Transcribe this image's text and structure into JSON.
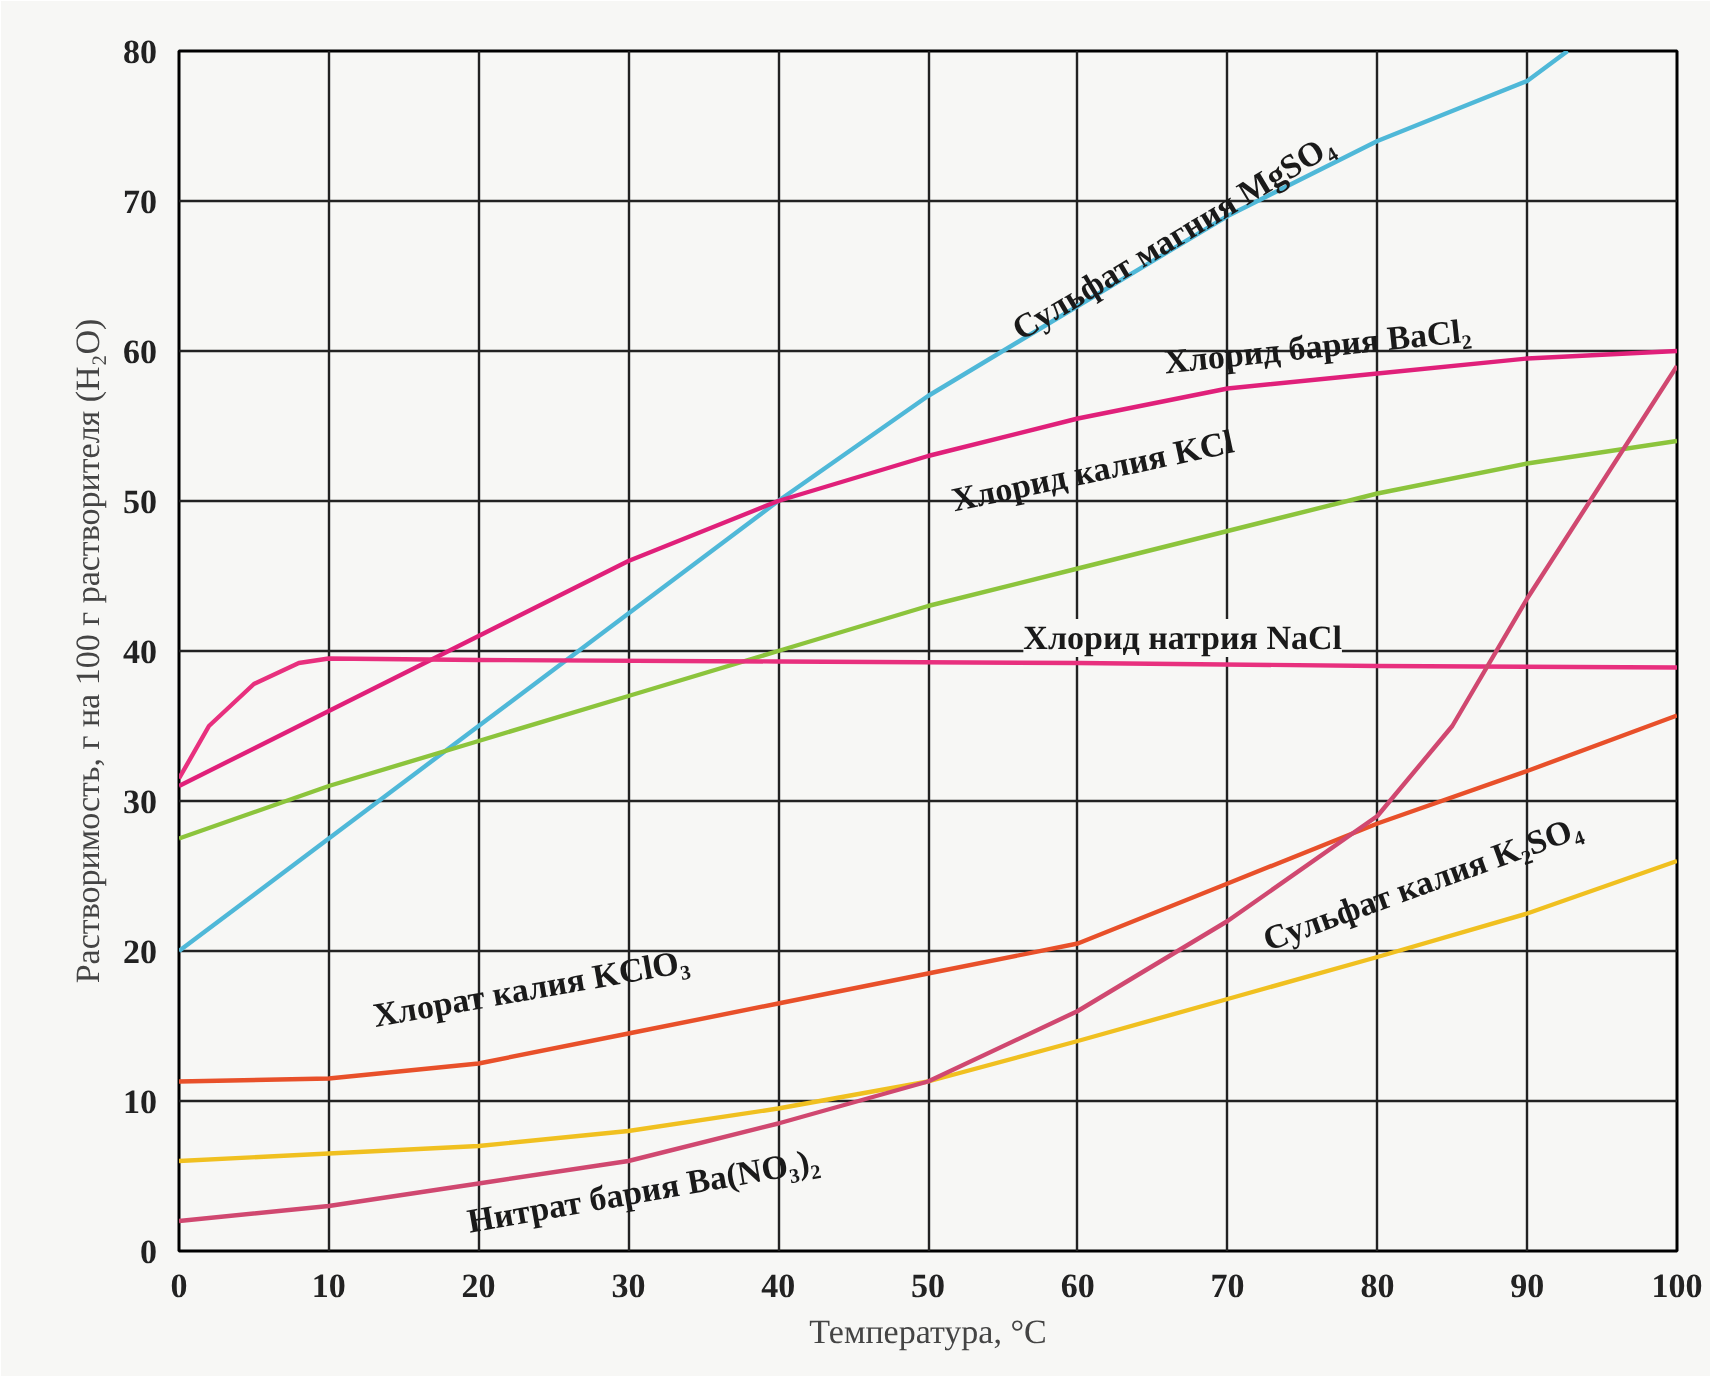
{
  "chart_data": {
    "type": "line",
    "xlabel": "Температура, °C",
    "ylabel": "Растворимость, г на 100 г растворителя (H₂O)",
    "xlim": [
      0,
      100
    ],
    "ylim": [
      0,
      80
    ],
    "xticks": [
      0,
      10,
      20,
      30,
      40,
      50,
      60,
      70,
      80,
      90,
      100
    ],
    "yticks": [
      0,
      10,
      20,
      30,
      40,
      50,
      60,
      70,
      80
    ],
    "grid": true,
    "marker": "none",
    "line_style": "solid",
    "series": [
      {
        "name": "Сульфат магния MgSO₄",
        "color": "#4fb8d8",
        "x": [
          0,
          10,
          20,
          30,
          40,
          50,
          60,
          70,
          80,
          90,
          92.7
        ],
        "values": [
          20,
          27.5,
          35,
          42.5,
          50,
          57,
          63,
          69,
          74,
          78,
          80
        ]
      },
      {
        "name": "Хлорид бария BaCl₂",
        "color": "#e0207a",
        "x": [
          0,
          10,
          20,
          30,
          40,
          50,
          60,
          70,
          80,
          90,
          100
        ],
        "values": [
          31,
          36,
          41,
          46,
          50,
          53,
          55.5,
          57.5,
          58.5,
          59.5,
          60
        ]
      },
      {
        "name": "Хлорид калия KCl",
        "color": "#8cc43c",
        "x": [
          0,
          10,
          20,
          30,
          40,
          50,
          60,
          70,
          80,
          90,
          100
        ],
        "values": [
          27.5,
          31,
          34,
          37,
          40,
          43,
          45.5,
          48,
          50.5,
          52.5,
          54
        ]
      },
      {
        "name": "Хлорид натрия NaCl",
        "color": "#e8307e",
        "x": [
          0,
          2,
          5,
          8,
          10,
          20,
          40,
          60,
          80,
          100
        ],
        "values": [
          31.5,
          35,
          37.8,
          39.2,
          39.5,
          39.4,
          39.3,
          39.2,
          39,
          38.9
        ]
      },
      {
        "name": "Хлорат калия KClO₃",
        "color": "#e8502a",
        "x": [
          0,
          10,
          20,
          30,
          40,
          50,
          60,
          70,
          80,
          90,
          100
        ],
        "values": [
          11.3,
          11.5,
          12.5,
          14.5,
          16.5,
          18.5,
          20.5,
          24.5,
          28.5,
          32,
          35.7
        ]
      },
      {
        "name": "Сульфат калия K₂SO₄",
        "color": "#f0c020",
        "x": [
          0,
          10,
          20,
          30,
          40,
          50,
          60,
          70,
          80,
          90,
          100
        ],
        "values": [
          6,
          6.5,
          7,
          8,
          9.5,
          11.3,
          14,
          16.8,
          19.6,
          22.5,
          26
        ]
      },
      {
        "name": "Нитрат бария Ba(NO₃)₂",
        "color": "#d04870",
        "x": [
          0,
          10,
          20,
          30,
          40,
          50,
          60,
          70,
          80,
          85,
          90,
          100
        ],
        "values": [
          2,
          3,
          4.5,
          6,
          8.5,
          11.3,
          16,
          22,
          29,
          35,
          43.5,
          59
        ]
      }
    ]
  }
}
